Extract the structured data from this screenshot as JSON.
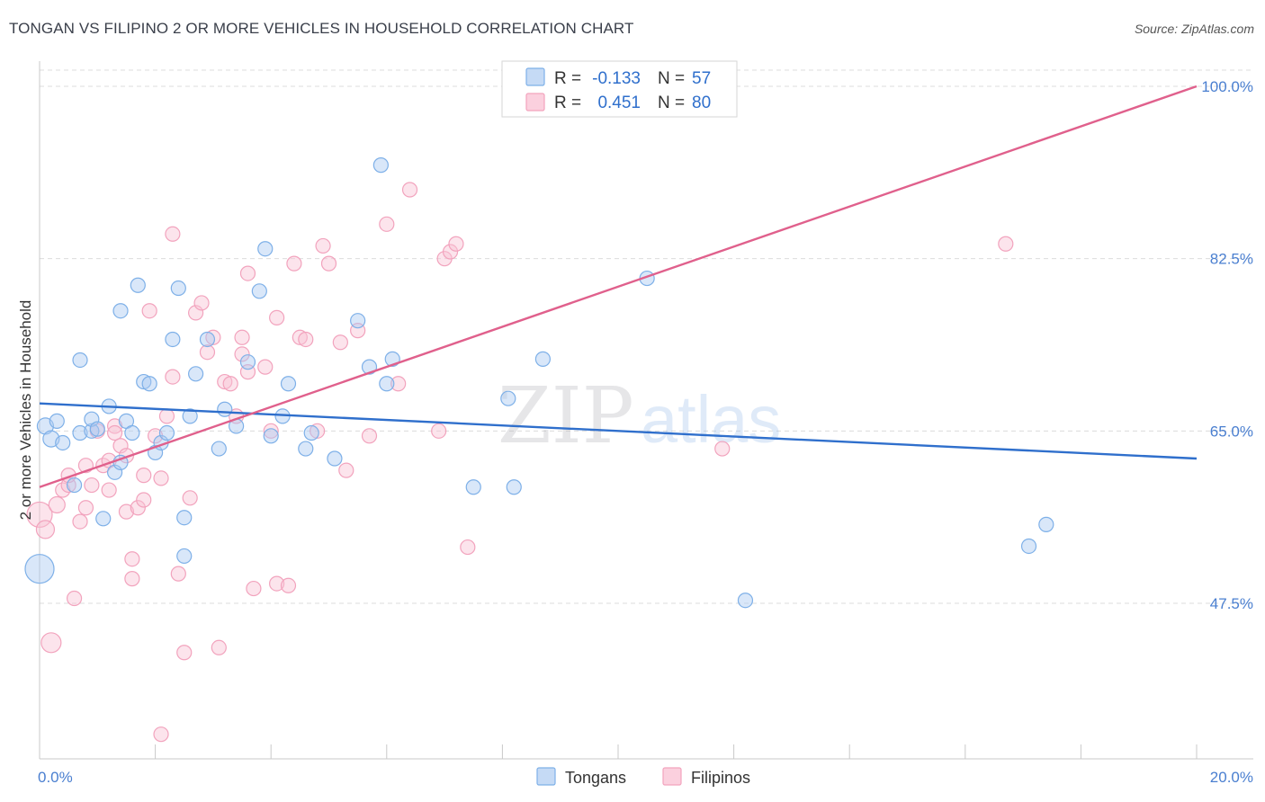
{
  "title": "TONGAN VS FILIPINO 2 OR MORE VEHICLES IN HOUSEHOLD CORRELATION CHART",
  "source": "Source: ZipAtlas.com",
  "watermark": {
    "zip": "ZIP",
    "atlas": "atlas"
  },
  "chart_data": {
    "type": "scatter",
    "title": "TONGAN VS FILIPINO 2 OR MORE VEHICLES IN HOUSEHOLD CORRELATION CHART",
    "xlabel": "",
    "ylabel": "2 or more Vehicles in Household",
    "xlim": [
      0,
      20
    ],
    "ylim": [
      30,
      102
    ],
    "x_tick_labels": [
      "0.0%",
      "20.0%"
    ],
    "y_ticks": [
      47.5,
      65.0,
      82.5,
      100.0
    ],
    "y_tick_labels": [
      "47.5%",
      "65.0%",
      "82.5%",
      "100.0%"
    ],
    "legend": [
      {
        "name": "Tongans",
        "color": "#7eb0e8",
        "r_label": "R =",
        "r_value": "-0.133",
        "n_label": "N =",
        "n_value": "57"
      },
      {
        "name": "Filipinos",
        "color": "#f2a3bd",
        "r_label": "R =",
        "r_value": "0.451",
        "n_label": "N =",
        "n_value": "80"
      }
    ],
    "series": [
      {
        "name": "Tongans",
        "color": "#7eb0e8",
        "line_color": "#2f6fcc",
        "trend": {
          "x": [
            0,
            20
          ],
          "y": [
            67.8,
            62.2
          ]
        },
        "points": [
          [
            0.0,
            51.0,
            16
          ],
          [
            0.1,
            65.5,
            9
          ],
          [
            0.2,
            64.2,
            9
          ],
          [
            0.3,
            66.0,
            8
          ],
          [
            0.4,
            63.8,
            8
          ],
          [
            0.6,
            59.5,
            8
          ],
          [
            0.7,
            64.8,
            8
          ],
          [
            0.7,
            72.2,
            8
          ],
          [
            0.9,
            65.0,
            8
          ],
          [
            0.9,
            66.2,
            8
          ],
          [
            1.0,
            65.2,
            8
          ],
          [
            1.1,
            56.1,
            8
          ],
          [
            1.2,
            67.5,
            8
          ],
          [
            1.3,
            60.8,
            8
          ],
          [
            1.4,
            61.8,
            8
          ],
          [
            1.4,
            77.2,
            8
          ],
          [
            1.5,
            66.0,
            8
          ],
          [
            1.6,
            64.8,
            8
          ],
          [
            1.7,
            79.8,
            8
          ],
          [
            1.8,
            70.0,
            8
          ],
          [
            1.9,
            69.8,
            8
          ],
          [
            2.0,
            62.8,
            8
          ],
          [
            2.1,
            63.8,
            8
          ],
          [
            2.2,
            64.8,
            8
          ],
          [
            2.3,
            74.3,
            8
          ],
          [
            2.4,
            79.5,
            8
          ],
          [
            2.5,
            56.2,
            8
          ],
          [
            2.5,
            52.3,
            8
          ],
          [
            2.6,
            66.5,
            8
          ],
          [
            2.7,
            70.8,
            8
          ],
          [
            2.9,
            74.3,
            8
          ],
          [
            3.1,
            63.2,
            8
          ],
          [
            3.2,
            67.2,
            8
          ],
          [
            3.4,
            65.5,
            8
          ],
          [
            3.6,
            72.0,
            8
          ],
          [
            3.8,
            79.2,
            8
          ],
          [
            3.9,
            83.5,
            8
          ],
          [
            4.0,
            64.5,
            8
          ],
          [
            4.2,
            66.5,
            8
          ],
          [
            4.3,
            69.8,
            8
          ],
          [
            4.6,
            63.2,
            8
          ],
          [
            4.7,
            64.8,
            8
          ],
          [
            5.1,
            62.2,
            8
          ],
          [
            5.5,
            76.2,
            8
          ],
          [
            5.7,
            71.5,
            8
          ],
          [
            5.9,
            92.0,
            8
          ],
          [
            6.0,
            69.8,
            8
          ],
          [
            6.1,
            72.3,
            8
          ],
          [
            7.5,
            59.3,
            8
          ],
          [
            8.1,
            68.3,
            8
          ],
          [
            8.2,
            59.3,
            8
          ],
          [
            8.7,
            72.3,
            8
          ],
          [
            10.5,
            80.5,
            8
          ],
          [
            12.2,
            47.8,
            8
          ],
          [
            17.1,
            53.3,
            8
          ],
          [
            17.4,
            55.5,
            8
          ]
        ]
      },
      {
        "name": "Filipinos",
        "color": "#f2a3bd",
        "line_color": "#e0608c",
        "trend": {
          "x": [
            0,
            20
          ],
          "y": [
            59.3,
            100.0
          ]
        },
        "points": [
          [
            0.0,
            56.5,
            14
          ],
          [
            0.1,
            55.0,
            10
          ],
          [
            0.2,
            43.5,
            11
          ],
          [
            0.3,
            57.5,
            9
          ],
          [
            0.4,
            59.0,
            8
          ],
          [
            0.5,
            59.5,
            8
          ],
          [
            0.5,
            60.5,
            8
          ],
          [
            0.6,
            48.0,
            8
          ],
          [
            0.7,
            55.8,
            8
          ],
          [
            0.8,
            57.2,
            8
          ],
          [
            0.8,
            61.5,
            8
          ],
          [
            0.9,
            59.5,
            8
          ],
          [
            1.0,
            65.0,
            8
          ],
          [
            1.1,
            61.5,
            8
          ],
          [
            1.2,
            62.0,
            8
          ],
          [
            1.2,
            59.0,
            8
          ],
          [
            1.3,
            65.5,
            8
          ],
          [
            1.3,
            64.8,
            8
          ],
          [
            1.4,
            63.5,
            8
          ],
          [
            1.5,
            62.5,
            8
          ],
          [
            1.5,
            56.8,
            8
          ],
          [
            1.6,
            50.0,
            8
          ],
          [
            1.6,
            52.0,
            8
          ],
          [
            1.7,
            57.2,
            8
          ],
          [
            1.8,
            58.0,
            8
          ],
          [
            1.8,
            60.5,
            8
          ],
          [
            1.9,
            77.2,
            8
          ],
          [
            2.0,
            64.5,
            8
          ],
          [
            2.1,
            34.2,
            8
          ],
          [
            2.1,
            60.2,
            8
          ],
          [
            2.2,
            66.5,
            8
          ],
          [
            2.3,
            70.5,
            8
          ],
          [
            2.3,
            85.0,
            8
          ],
          [
            2.4,
            50.5,
            8
          ],
          [
            2.5,
            42.5,
            8
          ],
          [
            2.6,
            58.2,
            8
          ],
          [
            2.7,
            77.0,
            8
          ],
          [
            2.8,
            78.0,
            8
          ],
          [
            2.9,
            73.0,
            8
          ],
          [
            3.0,
            74.5,
            8
          ],
          [
            3.1,
            43.0,
            8
          ],
          [
            3.2,
            70.0,
            8
          ],
          [
            3.3,
            69.8,
            8
          ],
          [
            3.4,
            66.5,
            8
          ],
          [
            3.5,
            72.8,
            8
          ],
          [
            3.5,
            74.5,
            8
          ],
          [
            3.6,
            81.0,
            8
          ],
          [
            3.6,
            71.0,
            8
          ],
          [
            3.7,
            49.0,
            8
          ],
          [
            3.9,
            71.5,
            8
          ],
          [
            4.0,
            65.0,
            8
          ],
          [
            4.1,
            76.5,
            8
          ],
          [
            4.1,
            49.5,
            8
          ],
          [
            4.3,
            49.3,
            8
          ],
          [
            4.4,
            82.0,
            8
          ],
          [
            4.5,
            74.5,
            8
          ],
          [
            4.6,
            74.3,
            8
          ],
          [
            4.8,
            65.0,
            8
          ],
          [
            4.9,
            83.8,
            8
          ],
          [
            5.0,
            82.0,
            8
          ],
          [
            5.2,
            74.0,
            8
          ],
          [
            5.3,
            61.0,
            8
          ],
          [
            5.5,
            75.2,
            8
          ],
          [
            5.7,
            64.5,
            8
          ],
          [
            6.0,
            86.0,
            8
          ],
          [
            6.2,
            69.8,
            8
          ],
          [
            6.4,
            89.5,
            8
          ],
          [
            6.9,
            65.0,
            8
          ],
          [
            7.0,
            82.5,
            8
          ],
          [
            7.1,
            83.2,
            8
          ],
          [
            7.2,
            84.0,
            8
          ],
          [
            7.4,
            53.2,
            8
          ],
          [
            11.8,
            63.2,
            8
          ],
          [
            16.7,
            84.0,
            8
          ]
        ]
      }
    ]
  }
}
